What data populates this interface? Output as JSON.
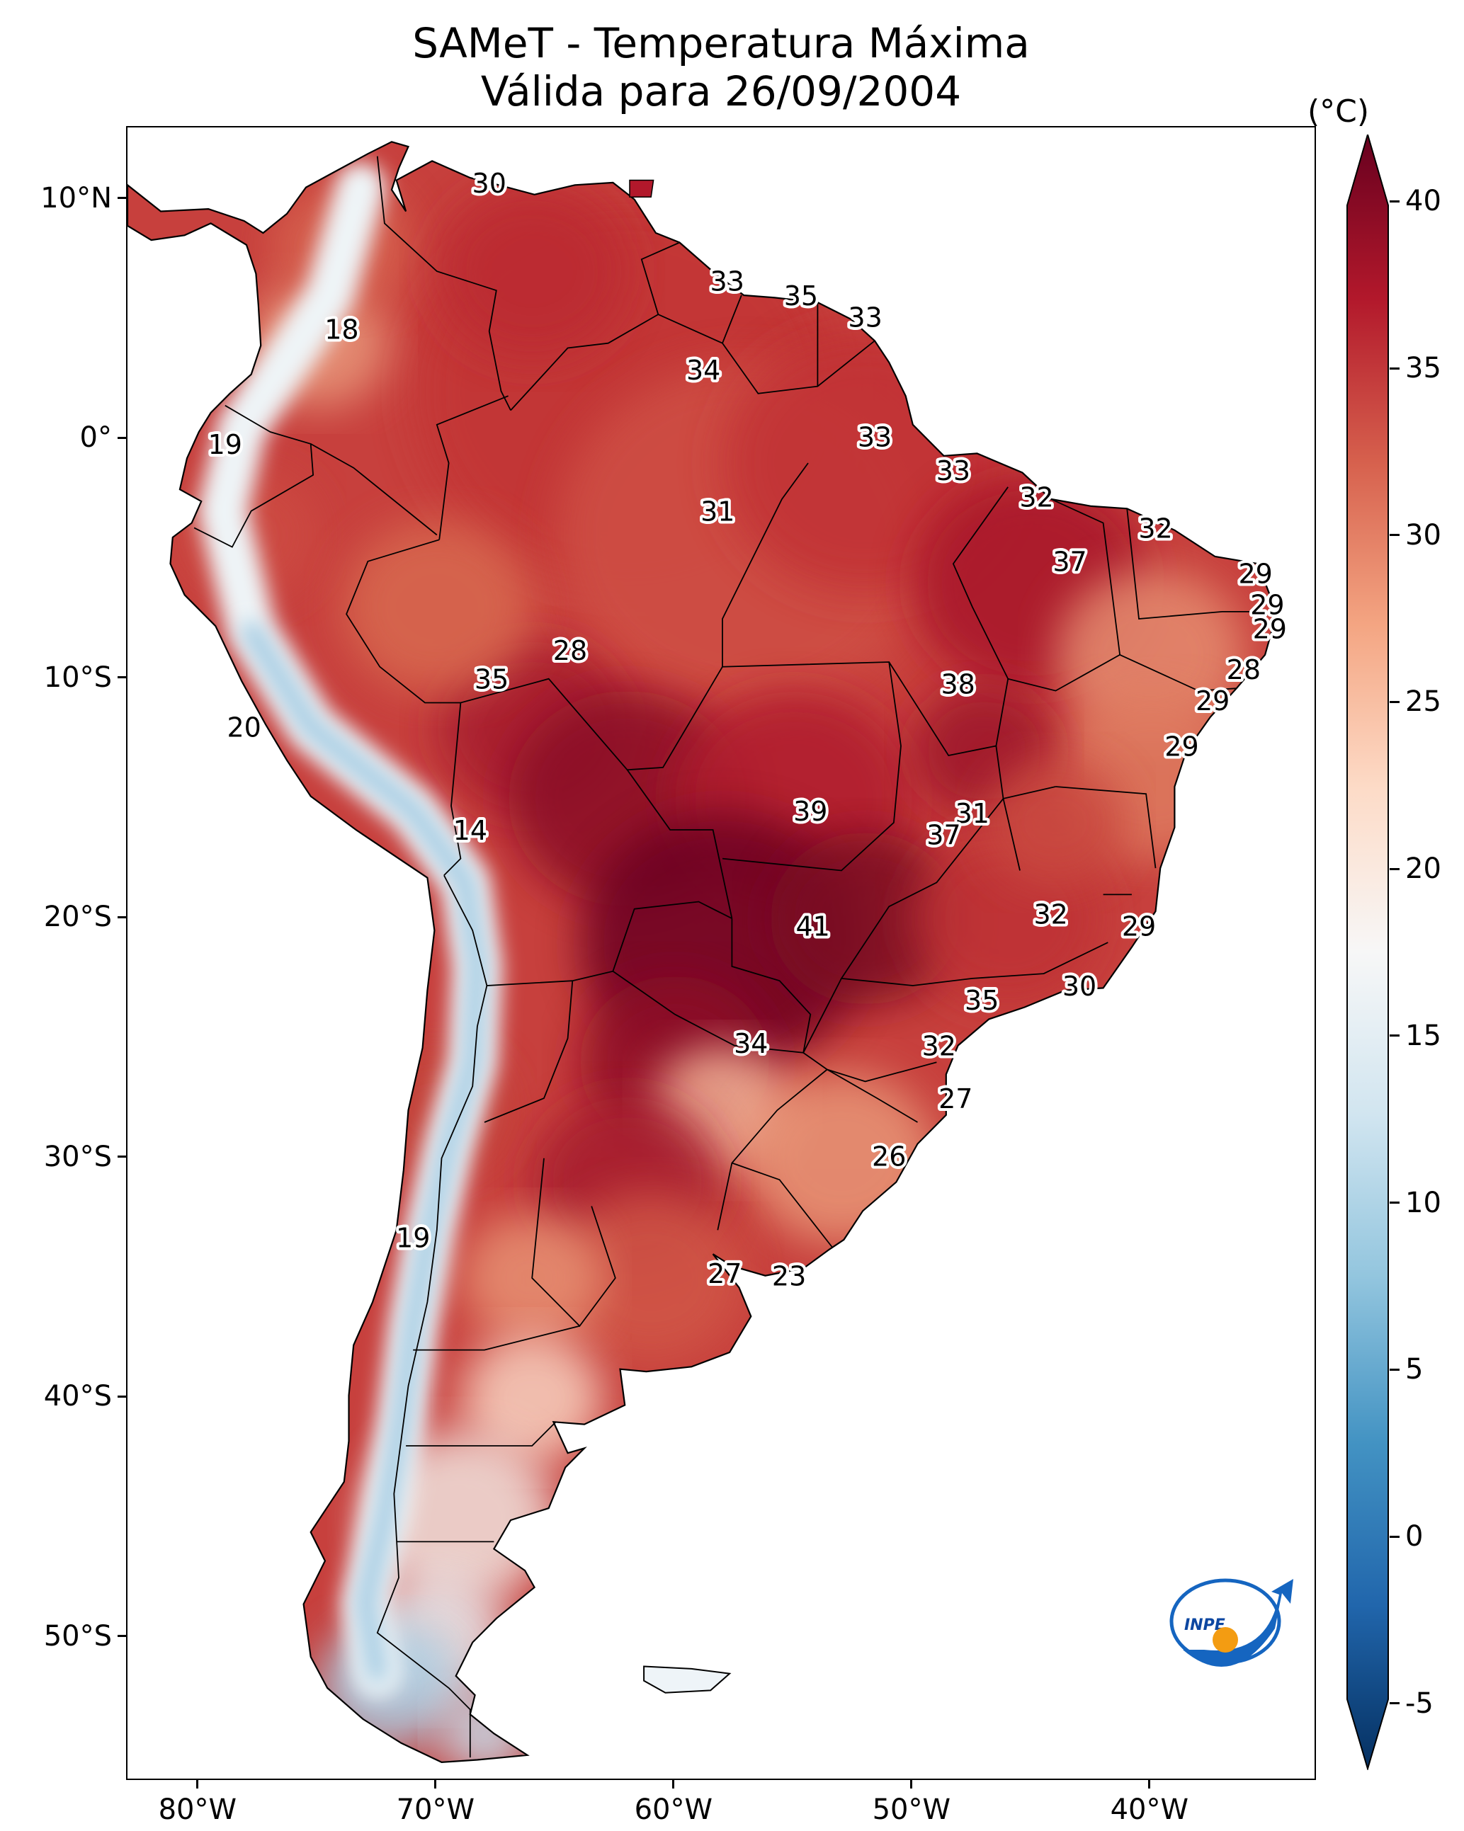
{
  "title": {
    "line1": "SAMeT - Temperatura Máxima",
    "line2": "Válida para 26/09/2004"
  },
  "axes": {
    "lon_range": [
      -83,
      -33
    ],
    "lat_range": [
      -56,
      13
    ],
    "lat_ticks": [
      {
        "value": 10,
        "label": "10°N"
      },
      {
        "value": 0,
        "label": "0°"
      },
      {
        "value": -10,
        "label": "10°S"
      },
      {
        "value": -20,
        "label": "20°S"
      },
      {
        "value": -30,
        "label": "30°S"
      },
      {
        "value": -40,
        "label": "40°S"
      },
      {
        "value": -50,
        "label": "50°S"
      }
    ],
    "lon_ticks": [
      {
        "value": -80,
        "label": "80°W"
      },
      {
        "value": -70,
        "label": "70°W"
      },
      {
        "value": -60,
        "label": "60°W"
      },
      {
        "value": -50,
        "label": "50°W"
      },
      {
        "value": -40,
        "label": "40°W"
      }
    ]
  },
  "colorbar": {
    "unit": "(°C)",
    "min": -7,
    "max": 42,
    "ticks": [
      {
        "value": 40,
        "label": "40"
      },
      {
        "value": 35,
        "label": "35"
      },
      {
        "value": 30,
        "label": "30"
      },
      {
        "value": 25,
        "label": "25"
      },
      {
        "value": 20,
        "label": "20"
      },
      {
        "value": 15,
        "label": "15"
      },
      {
        "value": 10,
        "label": "10"
      },
      {
        "value": 5,
        "label": "5"
      },
      {
        "value": 0,
        "label": "0"
      },
      {
        "value": -5,
        "label": "-5"
      }
    ],
    "colors": [
      "#053061",
      "#2166ac",
      "#4393c3",
      "#92c5de",
      "#d1e5f0",
      "#f7f7f7",
      "#fddbc7",
      "#f4a582",
      "#d6604d",
      "#b2182b",
      "#67001f"
    ]
  },
  "station_labels": [
    {
      "lon": -67.8,
      "lat": 10.6,
      "text": "30"
    },
    {
      "lon": -57.8,
      "lat": 6.5,
      "text": "33"
    },
    {
      "lon": -54.7,
      "lat": 5.9,
      "text": "35"
    },
    {
      "lon": -52.0,
      "lat": 5.0,
      "text": "33"
    },
    {
      "lon": -74.0,
      "lat": 4.5,
      "text": "18"
    },
    {
      "lon": -58.8,
      "lat": 2.8,
      "text": "34"
    },
    {
      "lon": -78.9,
      "lat": -0.3,
      "text": "19"
    },
    {
      "lon": -51.6,
      "lat": 0.0,
      "text": "33"
    },
    {
      "lon": -48.3,
      "lat": -1.4,
      "text": "33"
    },
    {
      "lon": -58.2,
      "lat": -3.1,
      "text": "31"
    },
    {
      "lon": -44.8,
      "lat": -2.5,
      "text": "32"
    },
    {
      "lon": -39.8,
      "lat": -3.8,
      "text": "32"
    },
    {
      "lon": -43.4,
      "lat": -5.2,
      "text": "37"
    },
    {
      "lon": -35.6,
      "lat": -5.7,
      "text": "29"
    },
    {
      "lon": -35.1,
      "lat": -7.0,
      "text": "29"
    },
    {
      "lon": -35.0,
      "lat": -8.0,
      "text": "29"
    },
    {
      "lon": -64.4,
      "lat": -8.9,
      "text": "28"
    },
    {
      "lon": -36.1,
      "lat": -9.7,
      "text": "28"
    },
    {
      "lon": -67.7,
      "lat": -10.1,
      "text": "35"
    },
    {
      "lon": -48.1,
      "lat": -10.3,
      "text": "38"
    },
    {
      "lon": -37.4,
      "lat": -11.0,
      "text": "29"
    },
    {
      "lon": -78.1,
      "lat": -12.1,
      "text": "20"
    },
    {
      "lon": -38.7,
      "lat": -12.9,
      "text": "29"
    },
    {
      "lon": -54.3,
      "lat": -15.6,
      "text": "39"
    },
    {
      "lon": -47.5,
      "lat": -15.7,
      "text": "31"
    },
    {
      "lon": -68.6,
      "lat": -16.4,
      "text": "14"
    },
    {
      "lon": -48.7,
      "lat": -16.6,
      "text": "37"
    },
    {
      "lon": -44.2,
      "lat": -19.9,
      "text": "32"
    },
    {
      "lon": -54.2,
      "lat": -20.4,
      "text": "41"
    },
    {
      "lon": -40.5,
      "lat": -20.4,
      "text": "29"
    },
    {
      "lon": -43.0,
      "lat": -22.9,
      "text": "30"
    },
    {
      "lon": -47.1,
      "lat": -23.5,
      "text": "35"
    },
    {
      "lon": -56.8,
      "lat": -25.3,
      "text": "34"
    },
    {
      "lon": -48.9,
      "lat": -25.4,
      "text": "32"
    },
    {
      "lon": -48.2,
      "lat": -27.6,
      "text": "27"
    },
    {
      "lon": -51.0,
      "lat": -30.0,
      "text": "26"
    },
    {
      "lon": -71.0,
      "lat": -33.4,
      "text": "19"
    },
    {
      "lon": -57.9,
      "lat": -34.9,
      "text": "27"
    },
    {
      "lon": -55.2,
      "lat": -35.0,
      "text": "23"
    }
  ]
}
